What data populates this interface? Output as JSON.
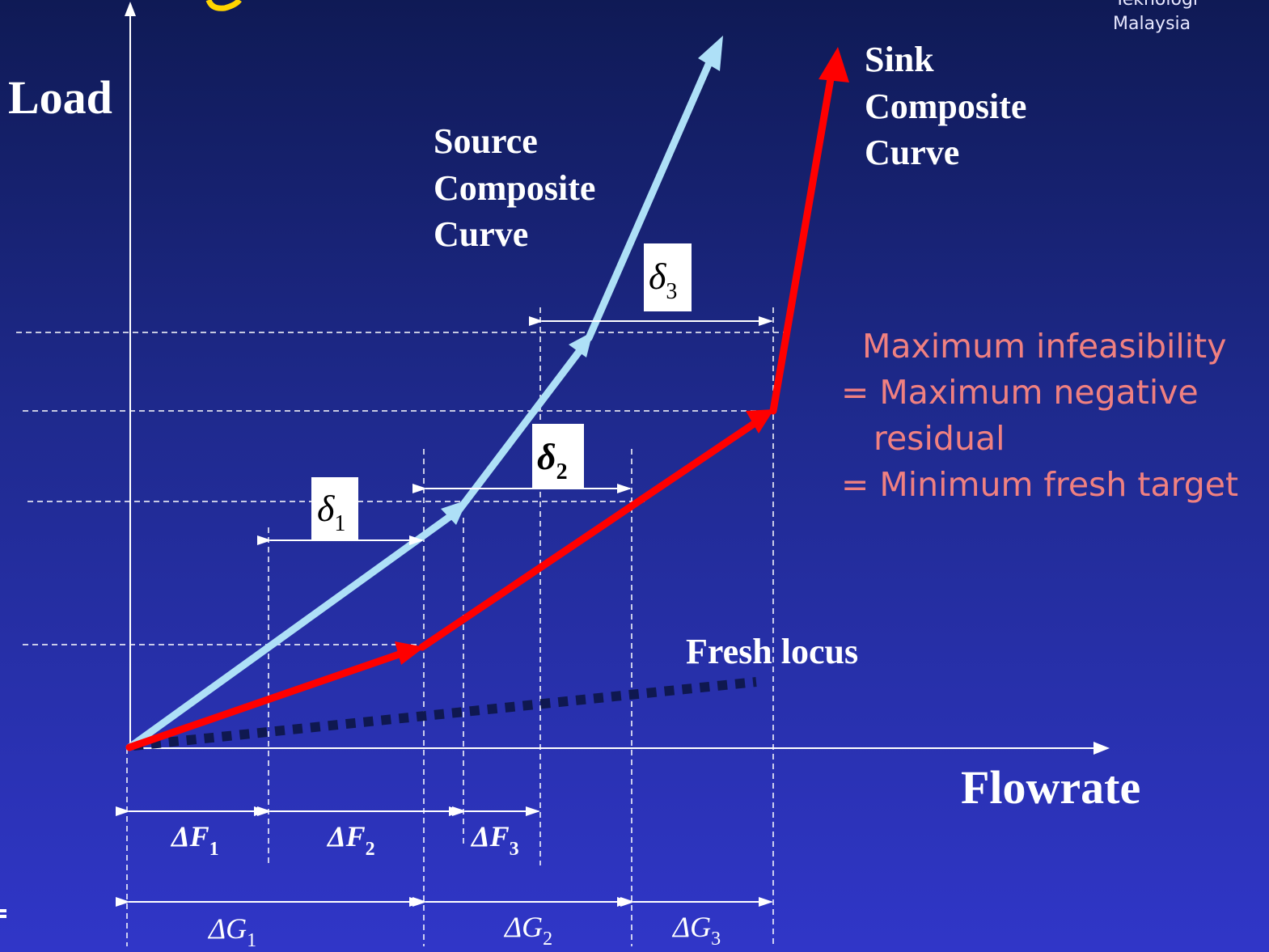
{
  "colors": {
    "source_curve": "#aee0f7",
    "sink_curve": "#ff0000",
    "fresh_locus": "#101a55",
    "axis": "#ffffff",
    "note": "#f08080"
  },
  "logo": {
    "line1": "Teknologi",
    "line2": "Malaysia"
  },
  "axes": {
    "y_label": "Load",
    "x_label": "Flowrate"
  },
  "curves": {
    "source": [
      "Source",
      "Composite",
      "Curve"
    ],
    "sink": [
      "Sink",
      "Composite",
      "Curve"
    ],
    "fresh": "Fresh locus"
  },
  "deltas": {
    "d1": {
      "sym": "δ",
      "sub": "1"
    },
    "d2": {
      "sym": "δ",
      "sub": "2"
    },
    "d3": {
      "sym": "δ",
      "sub": "3"
    }
  },
  "intervals": {
    "F": [
      {
        "sym": "ΔF",
        "sub": "1"
      },
      {
        "sym": "ΔF",
        "sub": "2"
      },
      {
        "sym": "ΔF",
        "sub": "3"
      }
    ],
    "G": [
      {
        "sym": "ΔG",
        "sub": "1"
      },
      {
        "sym": "ΔG",
        "sub": "2"
      },
      {
        "sym": "ΔG",
        "sub": "3"
      }
    ]
  },
  "note": {
    "line1": "Maximum infeasibility",
    "line2": "= Maximum negative",
    "line3": "residual",
    "line4": "= Minimum fresh target"
  }
}
